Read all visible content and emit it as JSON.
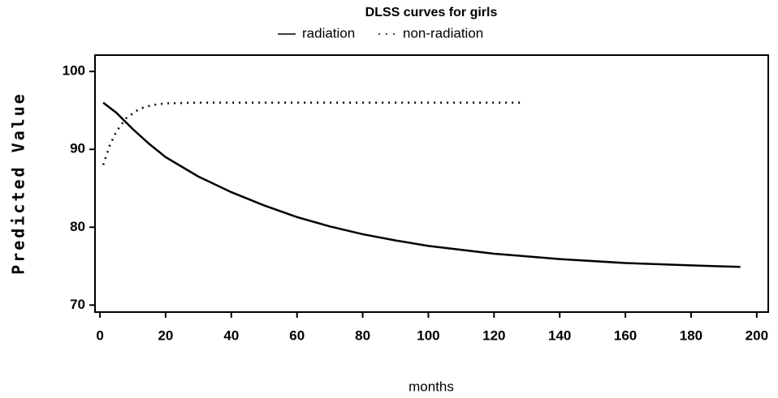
{
  "chart_data": {
    "type": "line",
    "title": "DLSS curves for girls",
    "xlabel": "months",
    "ylabel": "Predicted Value",
    "xlim": [
      -1.5,
      203.5
    ],
    "ylim": [
      69.1,
      102.1
    ],
    "xticks": [
      0,
      20,
      40,
      60,
      80,
      100,
      120,
      140,
      160,
      180,
      200
    ],
    "yticks": [
      70,
      80,
      90,
      100
    ],
    "legend": "top",
    "series": [
      {
        "name": "radiation",
        "color": "#000000",
        "style": "solid",
        "x": [
          1,
          5,
          10,
          15,
          20,
          30,
          40,
          50,
          60,
          70,
          80,
          90,
          100,
          120,
          140,
          160,
          180,
          195
        ],
        "values": [
          96,
          94.7,
          92.6,
          90.7,
          89.0,
          86.5,
          84.5,
          82.8,
          81.3,
          80.1,
          79.1,
          78.3,
          77.6,
          76.6,
          75.9,
          75.4,
          75.1,
          74.9
        ]
      },
      {
        "name": "non-radiation",
        "color": "#000000",
        "style": "dotted",
        "x": [
          1,
          3,
          5,
          8,
          12,
          16,
          20,
          30,
          60,
          90,
          129
        ],
        "values": [
          88,
          90.5,
          92.3,
          94,
          95.2,
          95.7,
          95.9,
          96,
          96,
          96,
          96
        ]
      }
    ]
  }
}
